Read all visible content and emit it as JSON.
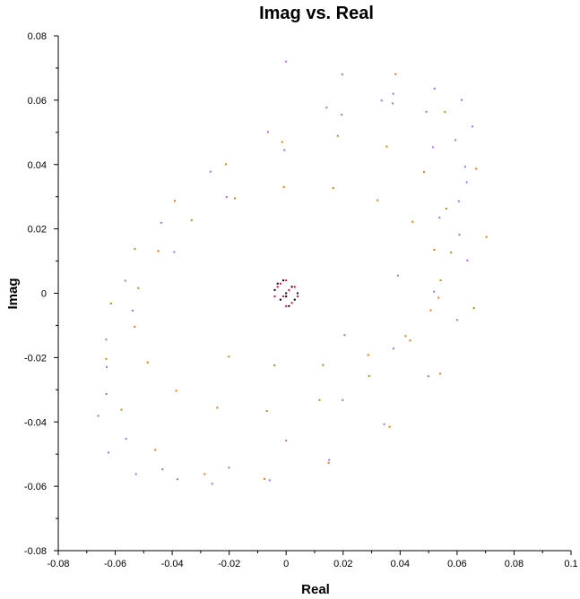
{
  "chart_data": {
    "type": "scatter",
    "title": "Imag vs. Real",
    "xlabel": "Real",
    "ylabel": "Imag",
    "xlim": [
      -0.08,
      0.1
    ],
    "ylim": [
      -0.08,
      0.08
    ],
    "x_ticks": [
      -0.08,
      -0.06,
      -0.04,
      -0.02,
      0,
      0.02,
      0.04,
      0.06,
      0.08,
      0.1
    ],
    "x_tick_labels": [
      "-0.08",
      "-0.06",
      "-0.04",
      "-0.02",
      "0",
      "0.02",
      "0.04",
      "0.06",
      "0.08",
      "0.1"
    ],
    "y_ticks": [
      -0.08,
      -0.06,
      -0.04,
      -0.02,
      0,
      0.02,
      0.04,
      0.06,
      0.08
    ],
    "y_tick_labels": [
      "-0.08",
      "-0.06",
      "-0.04",
      "-0.02",
      "0",
      "0.02",
      "0.04",
      "0.06",
      "0.08"
    ],
    "grid": false,
    "legend": "none",
    "series": [
      {
        "color": "#b266e6",
        "description": "ring of points",
        "center": [
          0.0,
          0.0
        ],
        "radius_range": [
          0.064,
          0.078
        ],
        "x": [
          0.0,
          0.0197,
          0.0374,
          0.0515,
          0.0606,
          0.0636,
          0.06,
          0.0499,
          0.0344,
          0.0151,
          -0.0058,
          -0.026,
          -0.0434,
          -0.0562,
          -0.0631,
          -0.0632,
          -0.0565,
          -0.0439,
          -0.0266,
          -0.0064,
          0.0142,
          0.0335,
          0.0492,
          0.0594,
          0.0634,
          0.0608,
          0.0519,
          0.0377,
          0.0198,
          -0.0,
          -0.0201,
          -0.0382,
          -0.0527,
          -0.0624,
          -0.066,
          -0.063,
          -0.0539,
          -0.0393,
          -0.0209,
          -0.0006,
          0.0195,
          0.0376,
          0.0521,
          0.0616,
          0.0654,
          0.0628,
          0.0538,
          0.0392,
          0.0205
        ],
        "y": [
          0.072,
          0.068,
          0.059,
          0.0454,
          0.0286,
          0.0102,
          -0.0083,
          -0.0258,
          -0.0407,
          -0.0518,
          -0.0581,
          -0.0592,
          -0.0547,
          -0.0452,
          -0.0313,
          -0.0144,
          0.0039,
          0.0219,
          0.0378,
          0.0501,
          0.0577,
          0.0599,
          0.0564,
          0.0476,
          0.0345,
          0.0182,
          0.0005,
          -0.0172,
          -0.0332,
          -0.0458,
          -0.0542,
          -0.0578,
          -0.0562,
          -0.0495,
          -0.0381,
          -0.0229,
          -0.0054,
          0.0128,
          0.0299,
          0.0445,
          0.0555,
          0.062,
          0.0636,
          0.0601,
          0.0518,
          0.0393,
          0.0235,
          0.0055,
          -0.013
        ]
      },
      {
        "color": "#d98000",
        "description": "ring of points",
        "center": [
          0.0,
          0.0
        ],
        "radius_range": [
          0.064,
          0.078
        ],
        "x": [
          0.0384,
          0.0557,
          0.0667,
          0.0703,
          0.0659,
          0.0541,
          0.0363,
          0.0149,
          -0.0076,
          -0.0286,
          -0.0459,
          -0.0578,
          -0.0632,
          -0.0615,
          -0.0531,
          -0.0391,
          -0.0212,
          -0.0014,
          0.0181,
          0.0353,
          0.0484,
          0.0562,
          0.0579,
          0.0535,
          0.0435,
          0.0291,
          0.0117,
          -0.0068,
          -0.0242,
          -0.0386,
          -0.0486,
          -0.0532,
          -0.0519,
          -0.0449,
          -0.0332,
          -0.018,
          -0.0008,
          0.0165,
          0.0321,
          0.0444,
          0.052,
          0.0542,
          0.0507,
          0.0419,
          0.0288,
          0.0129,
          -0.0041,
          -0.0201
        ],
        "y": [
          0.0681,
          0.0563,
          0.0387,
          0.0175,
          -0.0046,
          -0.025,
          -0.0415,
          -0.0527,
          -0.0577,
          -0.0562,
          -0.0487,
          -0.0362,
          -0.0204,
          -0.0032,
          0.0138,
          0.0287,
          0.0401,
          0.047,
          0.0489,
          0.0456,
          0.0377,
          0.0263,
          0.0127,
          -0.0014,
          -0.0147,
          -0.0257,
          -0.0332,
          -0.0366,
          -0.0356,
          -0.0303,
          -0.0215,
          -0.0104,
          0.0016,
          0.0131,
          0.0227,
          0.0295,
          0.033,
          0.0327,
          0.0289,
          0.0222,
          0.0135,
          0.004,
          -0.0053,
          -0.0133,
          -0.0192,
          -0.0223,
          -0.0224,
          -0.0197
        ]
      },
      {
        "color": "#000000",
        "description": "central cluster",
        "center": [
          0.0,
          0.0
        ],
        "radius_range": [
          0.0,
          0.005
        ],
        "x": [
          0.0,
          0.002,
          -0.002,
          0.004,
          -0.004,
          0.001,
          -0.001,
          0.003,
          -0.003,
          0.0
        ],
        "y": [
          0.0,
          0.002,
          -0.002,
          0.0,
          0.001,
          -0.004,
          0.004,
          -0.002,
          0.003,
          -0.001
        ]
      },
      {
        "color": "#e6005c",
        "description": "central cluster",
        "center": [
          0.0,
          0.0
        ],
        "radius_range": [
          0.0,
          0.0045
        ],
        "x": [
          0.001,
          -0.001,
          0.003,
          -0.003,
          0.002,
          -0.002,
          0.0,
          0.004,
          -0.004,
          0.0
        ],
        "y": [
          0.001,
          -0.001,
          0.002,
          0.002,
          -0.003,
          0.003,
          0.004,
          -0.001,
          -0.001,
          -0.004
        ]
      }
    ]
  }
}
